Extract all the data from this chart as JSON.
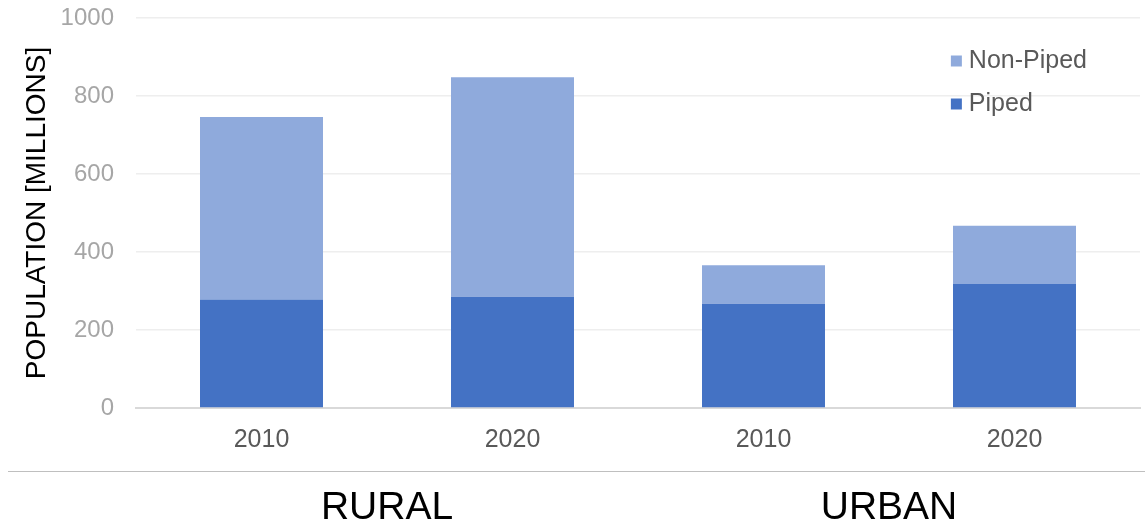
{
  "chart_data": {
    "type": "bar",
    "ylabel": "POPULATION [MILLIONS]",
    "categories": [
      "2010",
      "2020",
      "2010",
      "2020"
    ],
    "series": [
      {
        "name": "Piped",
        "color": "#4472c4",
        "values": [
          278,
          285,
          267,
          318
        ]
      },
      {
        "name": "Non-Piped",
        "color": "#8faadc",
        "values": [
          468,
          563,
          99,
          149
        ]
      }
    ],
    "stacked": true,
    "ylim": [
      0,
      1000
    ],
    "yticks": [
      0,
      200,
      400,
      600,
      800,
      1000
    ],
    "grid": "y",
    "legend": "top right",
    "annotations": [
      "RURAL",
      "URBAN"
    ]
  }
}
